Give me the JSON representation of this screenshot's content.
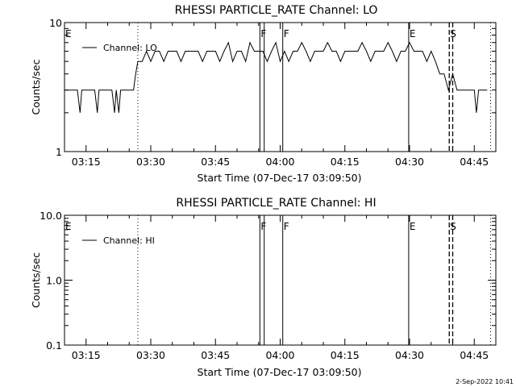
{
  "chart_data": [
    {
      "type": "line",
      "title": "RHESSI PARTICLE_RATE Channel: LO",
      "xlabel": "Start Time (07-Dec-17 03:09:50)",
      "ylabel": "Counts/sec",
      "y_scale": "log",
      "ylim": [
        1,
        10
      ],
      "yticks": [
        "1",
        "10"
      ],
      "xticks": [
        "03:15",
        "03:30",
        "03:45",
        "04:00",
        "04:15",
        "04:30",
        "04:45"
      ],
      "xlim_minutes": [
        190,
        290
      ],
      "legend": "Channel: LO",
      "legend_position": "top-left",
      "series": [
        {
          "x_minutes": [
            190,
            192,
            193,
            193.6,
            194,
            196,
            197,
            197.6,
            198,
            200,
            201,
            201.6,
            202,
            202.6,
            203,
            206,
            206.5,
            207,
            208,
            209,
            210,
            211,
            212,
            213,
            214,
            215,
            216,
            217,
            218,
            219,
            220,
            221,
            222,
            223,
            224,
            225,
            226,
            227,
            228,
            229,
            230,
            231,
            232,
            233,
            234,
            235,
            236,
            237,
            238,
            239,
            240,
            241,
            242,
            243,
            244,
            245,
            246,
            247,
            248,
            249,
            250,
            251,
            252,
            253,
            254,
            255,
            256,
            257,
            258,
            259,
            260,
            261,
            262,
            263,
            264,
            265,
            266,
            267,
            268,
            269,
            270,
            271,
            272,
            273,
            274,
            275,
            276,
            277,
            278,
            279,
            280,
            281,
            282,
            283,
            284,
            285,
            285.5,
            286,
            287,
            288
          ],
          "values": [
            3,
            3,
            3,
            2,
            3,
            3,
            3,
            2,
            3,
            3,
            3,
            2,
            3,
            2,
            3,
            3,
            4,
            5,
            5,
            6,
            5,
            6,
            6,
            5,
            6,
            6,
            6,
            5,
            6,
            6,
            6,
            6,
            5,
            6,
            6,
            6,
            5,
            6,
            7,
            5,
            6,
            6,
            5,
            7,
            6,
            6,
            6,
            5,
            6,
            7,
            5,
            6,
            5,
            6,
            6,
            7,
            6,
            5,
            6,
            6,
            6,
            7,
            6,
            6,
            5,
            6,
            6,
            6,
            6,
            7,
            6,
            5,
            6,
            6,
            6,
            7,
            6,
            5,
            6,
            6,
            7,
            6,
            6,
            6,
            5,
            6,
            5,
            4,
            4,
            3,
            4,
            3,
            3,
            3,
            3,
            3,
            2,
            3,
            3,
            3
          ]
        }
      ],
      "vlines": [
        {
          "label": "E",
          "x_minutes": 190,
          "style": "dotted"
        },
        {
          "label": "",
          "x_minutes": 207,
          "style": "dotted"
        },
        {
          "label": "F",
          "x_minutes": 235.3,
          "style": "solid"
        },
        {
          "label": "",
          "x_minutes": 236.3,
          "style": "solid"
        },
        {
          "label": "F",
          "x_minutes": 240.6,
          "style": "solid"
        },
        {
          "label": "E",
          "x_minutes": 269.8,
          "style": "solid"
        },
        {
          "label": "S",
          "x_minutes": 279.2,
          "style": "dashed"
        },
        {
          "label": "",
          "x_minutes": 280,
          "style": "dashed"
        },
        {
          "label": "",
          "x_minutes": 288.8,
          "style": "dotted"
        }
      ]
    },
    {
      "type": "line",
      "title": "RHESSI PARTICLE_RATE Channel: HI",
      "xlabel": "Start Time (07-Dec-17 03:09:50)",
      "ylabel": "Counts/sec",
      "y_scale": "log",
      "ylim": [
        0.1,
        10
      ],
      "yticks": [
        "0.1",
        "1.0",
        "10.0"
      ],
      "xticks": [
        "03:15",
        "03:30",
        "03:45",
        "04:00",
        "04:15",
        "04:30",
        "04:45"
      ],
      "xlim_minutes": [
        190,
        290
      ],
      "legend": "Channel: HI",
      "legend_position": "top-left",
      "series": [],
      "vlines": [
        {
          "label": "E",
          "x_minutes": 190,
          "style": "dotted"
        },
        {
          "label": "",
          "x_minutes": 207,
          "style": "dotted"
        },
        {
          "label": "F",
          "x_minutes": 235.3,
          "style": "solid"
        },
        {
          "label": "",
          "x_minutes": 236.3,
          "style": "solid"
        },
        {
          "label": "F",
          "x_minutes": 240.6,
          "style": "solid"
        },
        {
          "label": "E",
          "x_minutes": 269.8,
          "style": "solid"
        },
        {
          "label": "S",
          "x_minutes": 279.2,
          "style": "dashed"
        },
        {
          "label": "",
          "x_minutes": 280,
          "style": "dashed"
        },
        {
          "label": "",
          "x_minutes": 288.8,
          "style": "dotted"
        }
      ]
    }
  ],
  "footer_date": "2-Sep-2022 10:41"
}
